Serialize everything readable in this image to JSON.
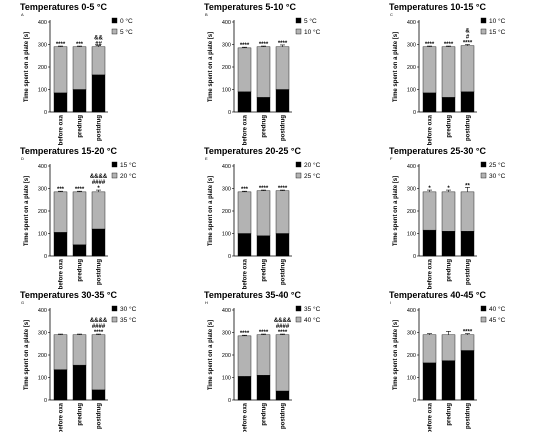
{
  "figure": {
    "panel_letters": [
      "A",
      "B",
      "C",
      "D",
      "E",
      "F",
      "G",
      "H",
      "I"
    ]
  },
  "chart_data": [
    {
      "type": "bar",
      "stacked": true,
      "title": "Temperatures 0-5 °C",
      "ylabel": "Time spent on a plate [s]",
      "categories": [
        "before oxa",
        "predrug",
        "postdrug"
      ],
      "ylim": [
        0,
        400
      ],
      "yticks": [
        0,
        100,
        200,
        300,
        400
      ],
      "series": [
        {
          "name": "0 °C",
          "values": [
            85,
            100,
            165
          ],
          "errors": [
            5,
            5,
            10
          ],
          "color": "#000000"
        },
        {
          "name": "5 °C",
          "values": [
            205,
            190,
            125
          ],
          "errors": [
            3,
            3,
            5
          ],
          "color": "#b3b3b3"
        }
      ],
      "annotations": [
        [
          "****"
        ],
        [
          "***"
        ],
        [
          "&&",
          "##"
        ]
      ]
    },
    {
      "type": "bar",
      "stacked": true,
      "title": "Temperatures 5-10 °C",
      "ylabel": "Time spent on a plate [s]",
      "categories": [
        "before oxa",
        "predrug",
        "postdrug"
      ],
      "ylim": [
        0,
        400
      ],
      "yticks": [
        0,
        100,
        200,
        300,
        400
      ],
      "series": [
        {
          "name": "5 °C",
          "values": [
            90,
            65,
            100
          ],
          "errors": [
            5,
            5,
            15
          ],
          "color": "#000000"
        },
        {
          "name": "10 °C",
          "values": [
            195,
            225,
            190
          ],
          "errors": [
            3,
            3,
            8
          ],
          "color": "#b3b3b3"
        }
      ],
      "annotations": [
        [
          "****"
        ],
        [
          "****"
        ],
        [
          "****"
        ]
      ]
    },
    {
      "type": "bar",
      "stacked": true,
      "title": "Temperatures 10-15 °C",
      "ylabel": "Time spent on a plate [s]",
      "categories": [
        "before oxa",
        "predrug",
        "postdrug"
      ],
      "ylim": [
        0,
        400
      ],
      "yticks": [
        0,
        100,
        200,
        300,
        400
      ],
      "series": [
        {
          "name": "10 °C",
          "values": [
            85,
            65,
            90
          ],
          "errors": [
            5,
            5,
            5
          ],
          "color": "#000000"
        },
        {
          "name": "15 °C",
          "values": [
            205,
            225,
            205
          ],
          "errors": [
            3,
            3,
            5
          ],
          "color": "#b3b3b3"
        }
      ],
      "annotations": [
        [
          "****"
        ],
        [
          "****"
        ],
        [
          "&",
          "#",
          "****"
        ]
      ]
    },
    {
      "type": "bar",
      "stacked": true,
      "title": "Temperatures 15-20 °C",
      "ylabel": "Time spent on a plate [s]",
      "categories": [
        "before oxa",
        "predrug",
        "postdrug"
      ],
      "ylim": [
        0,
        400
      ],
      "yticks": [
        0,
        100,
        200,
        300,
        400
      ],
      "series": [
        {
          "name": "15 °C",
          "values": [
            105,
            50,
            120
          ],
          "errors": [
            5,
            5,
            8
          ],
          "color": "#000000"
        },
        {
          "name": "20 °C",
          "values": [
            180,
            235,
            165
          ],
          "errors": [
            3,
            3,
            8
          ],
          "color": "#b3b3b3"
        }
      ],
      "annotations": [
        [
          "***"
        ],
        [
          "****"
        ],
        [
          "&&&&",
          "####",
          "*"
        ]
      ]
    },
    {
      "type": "bar",
      "stacked": true,
      "title": "Temperatures 20-25 °C",
      "ylabel": "Time spent on a plate [s]",
      "categories": [
        "before oxa",
        "predrug",
        "postdrug"
      ],
      "ylim": [
        0,
        400
      ],
      "yticks": [
        0,
        100,
        200,
        300,
        400
      ],
      "series": [
        {
          "name": "20 °C",
          "values": [
            100,
            90,
            100
          ],
          "errors": [
            5,
            5,
            5
          ],
          "color": "#000000"
        },
        {
          "name": "25 °C",
          "values": [
            185,
            200,
            190
          ],
          "errors": [
            3,
            3,
            3
          ],
          "color": "#b3b3b3"
        }
      ],
      "annotations": [
        [
          "***"
        ],
        [
          "****"
        ],
        [
          "****"
        ]
      ]
    },
    {
      "type": "bar",
      "stacked": true,
      "title": "Temperatures 25-30 °C",
      "ylabel": "Time spent on a plate [s]",
      "categories": [
        "before oxa",
        "predrug",
        "postdrug"
      ],
      "ylim": [
        0,
        400
      ],
      "yticks": [
        0,
        100,
        200,
        300,
        400
      ],
      "series": [
        {
          "name": "25 °C",
          "values": [
            115,
            110,
            110
          ],
          "errors": [
            10,
            10,
            10
          ],
          "color": "#000000"
        },
        {
          "name": "30 °C",
          "values": [
            170,
            175,
            175
          ],
          "errors": [
            8,
            8,
            20
          ],
          "color": "#b3b3b3"
        }
      ],
      "annotations": [
        [
          "*"
        ],
        [
          "*"
        ],
        [
          "**"
        ]
      ]
    },
    {
      "type": "bar",
      "stacked": true,
      "title": "Temperatures 30-35 °C",
      "ylabel": "Time spent on a plate [s]",
      "categories": [
        "before oxa",
        "predrug",
        "postdrug"
      ],
      "ylim": [
        0,
        400
      ],
      "yticks": [
        0,
        100,
        200,
        300,
        400
      ],
      "series": [
        {
          "name": "30 °C",
          "values": [
            135,
            155,
            45
          ],
          "errors": [
            5,
            5,
            5
          ],
          "color": "#000000"
        },
        {
          "name": "35 °C",
          "values": [
            155,
            135,
            245
          ],
          "errors": [
            3,
            3,
            3
          ],
          "color": "#b3b3b3"
        }
      ],
      "annotations": [
        [],
        [],
        [
          "&&&&",
          "####",
          "****"
        ]
      ]
    },
    {
      "type": "bar",
      "stacked": true,
      "title": "Temperatures 35-40 °C",
      "ylabel": "Time spent on a plate [s]",
      "categories": [
        "before oxa",
        "predrug",
        "postdrug"
      ],
      "ylim": [
        0,
        400
      ],
      "yticks": [
        0,
        100,
        200,
        300,
        400
      ],
      "series": [
        {
          "name": "35 °C",
          "values": [
            105,
            110,
            40
          ],
          "errors": [
            5,
            5,
            5
          ],
          "color": "#000000"
        },
        {
          "name": "40 °C",
          "values": [
            180,
            180,
            250
          ],
          "errors": [
            3,
            3,
            3
          ],
          "color": "#b3b3b3"
        }
      ],
      "annotations": [
        [
          "****"
        ],
        [
          "****"
        ],
        [
          "&&&&",
          "####",
          "****"
        ]
      ]
    },
    {
      "type": "bar",
      "stacked": true,
      "title": "Temperatures 40-45 °C",
      "ylabel": "Time spent on a plate [s]",
      "categories": [
        "before oxa",
        "predrug",
        "postdrug"
      ],
      "ylim": [
        0,
        400
      ],
      "yticks": [
        0,
        100,
        200,
        300,
        400
      ],
      "series": [
        {
          "name": "40 °C",
          "values": [
            165,
            175,
            220
          ],
          "errors": [
            8,
            25,
            5
          ],
          "color": "#000000"
        },
        {
          "name": "45 °C",
          "values": [
            125,
            115,
            70
          ],
          "errors": [
            5,
            15,
            5
          ],
          "color": "#b3b3b3"
        }
      ],
      "annotations": [
        [],
        [],
        [
          "****"
        ]
      ]
    }
  ]
}
